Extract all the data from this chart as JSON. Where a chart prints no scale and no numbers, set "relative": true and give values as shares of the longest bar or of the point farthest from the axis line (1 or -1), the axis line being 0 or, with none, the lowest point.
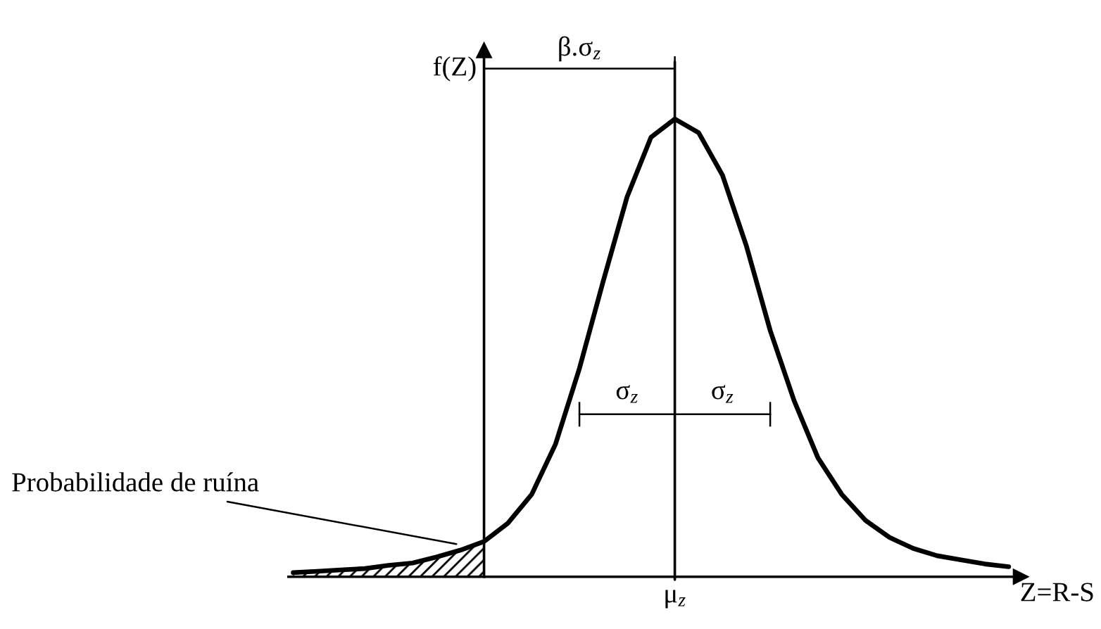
{
  "chart_data": {
    "type": "line",
    "relative": true,
    "xlabel": "Z=R-S",
    "ylabel": "f(Z)",
    "categories": [
      null,
      null,
      null,
      null,
      null,
      null,
      null,
      null,
      null,
      null,
      null,
      null,
      null,
      null,
      null,
      null,
      null,
      null,
      null,
      null,
      null,
      null,
      null,
      null,
      null,
      null,
      null,
      null,
      null,
      null,
      null
    ],
    "series": [
      {
        "color": "#000000",
        "values": [
          0.009,
          0.012,
          0.015,
          0.018,
          0.025,
          0.03,
          0.043,
          0.058,
          0.077,
          0.117,
          0.18,
          0.29,
          0.455,
          0.646,
          0.83,
          0.96,
          1,
          0.97,
          0.877,
          0.723,
          0.538,
          0.385,
          0.26,
          0.18,
          0.123,
          0.086,
          0.062,
          0.046,
          0.037,
          0.028,
          0.022
        ]
      }
    ],
    "annotations": [
      "β.σ$_{z}$",
      "σ$_{z}$",
      "σ$_{z}$",
      "Probabilidade de ruína",
      "μ$_{z}$"
    ]
  }
}
